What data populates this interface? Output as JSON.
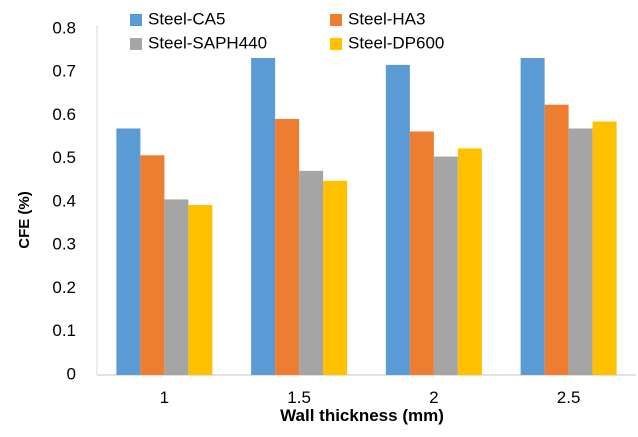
{
  "chart_data": {
    "type": "bar",
    "title": "",
    "xlabel": "Wall thickness (mm)",
    "ylabel": "CFE (%)",
    "categories": [
      "1",
      "1.5",
      "2",
      "2.5"
    ],
    "ylim": [
      0,
      0.8
    ],
    "yticks": [
      "0",
      "0.1",
      "0.2",
      "0.3",
      "0.4",
      "0.5",
      "0.6",
      "0.7",
      "0.8"
    ],
    "grid": false,
    "legend_position": "top",
    "series": [
      {
        "name": "Steel-CA5",
        "color": "#5B9BD5",
        "values": [
          0.57,
          0.733,
          0.717,
          0.733
        ]
      },
      {
        "name": "Steel-HA3",
        "color": "#ED7D31",
        "values": [
          0.508,
          0.592,
          0.563,
          0.625
        ]
      },
      {
        "name": "Steel-SAPH440",
        "color": "#A5A5A5",
        "values": [
          0.406,
          0.472,
          0.505,
          0.57
        ]
      },
      {
        "name": "Steel-DP600",
        "color": "#FFC000",
        "values": [
          0.393,
          0.449,
          0.524,
          0.586
        ]
      }
    ]
  }
}
